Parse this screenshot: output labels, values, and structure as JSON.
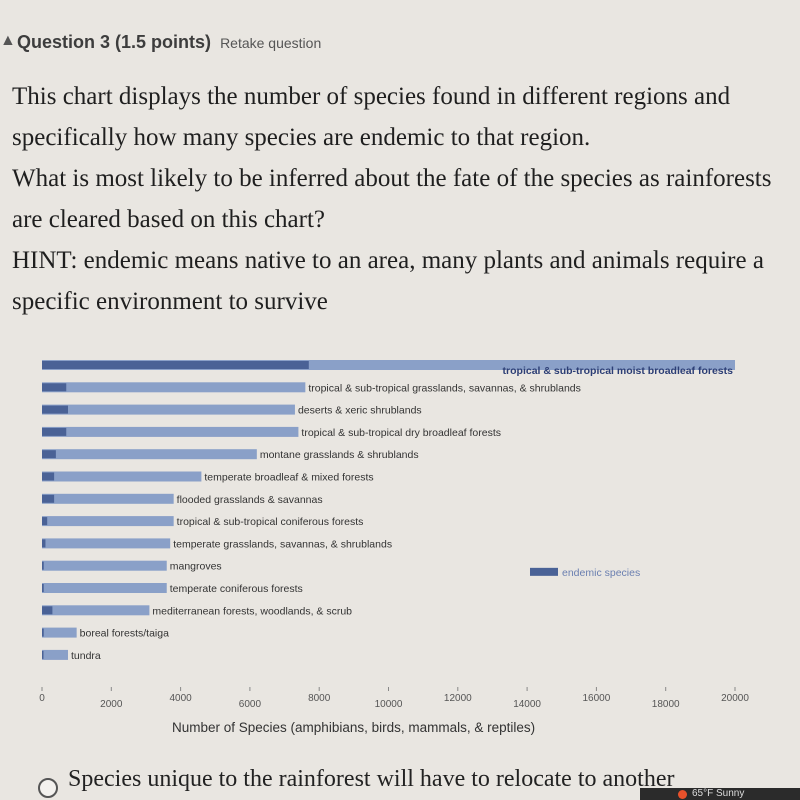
{
  "header": {
    "icon": "warning-icon",
    "title": "Question 3",
    "points": "(1.5 points)",
    "retake": "Retake question"
  },
  "prompt": {
    "lines": [
      "This chart displays the number of species found in different regions and specifically how many species are endemic to that region.",
      "What is most likely to be inferred about the fate of the species as rainforests are cleared based on this chart?",
      "HINT: endemic means native to an area, many plants and animals require a specific environment to survive"
    ]
  },
  "chart_data": {
    "type": "bar",
    "orientation": "horizontal",
    "xlabel": "Number of Species (amphibians, birds, mammals, & reptiles)",
    "xlim": [
      0,
      20000
    ],
    "xticks": [
      "0",
      "2000",
      "4000",
      "6000",
      "8000",
      "10000",
      "12000",
      "14000",
      "16000",
      "18000",
      "20000"
    ],
    "legend": {
      "label": "endemic species",
      "placement": "right"
    },
    "categories": [
      "tropical & sub-tropical moist broadleaf forests",
      "tropical & sub-tropical grasslands, savannas, & shrublands",
      "deserts & xeric shrublands",
      "tropical & sub-tropical dry broadleaf forests",
      "montane grasslands & shrublands",
      "temperate broadleaf & mixed forests",
      "flooded grasslands & savannas",
      "tropical & sub-tropical coniferous forests",
      "temperate grasslands, savannas, & shrublands",
      "mangroves",
      "temperate coniferous forests",
      "mediterranean forests, woodlands, & scrub",
      "boreal forests/taiga",
      "tundra"
    ],
    "series": [
      {
        "values": [
          20000,
          7600,
          7300,
          7400,
          6200,
          4600,
          3800,
          3800,
          3700,
          3600,
          3600,
          3100,
          1000,
          750
        ]
      },
      {
        "name": "endemic species",
        "values": [
          7700,
          700,
          750,
          700,
          400,
          350,
          350,
          150,
          100,
          50,
          50,
          300,
          50,
          10
        ]
      }
    ],
    "colors": {
      "total": "#8aa0c8",
      "endemic": "#4a6296",
      "background": "#e9e6e1"
    }
  },
  "answer": {
    "option_text": "Species unique to the rainforest will have to relocate to another"
  },
  "taskbar": {
    "weather": "65°F Sunny"
  }
}
